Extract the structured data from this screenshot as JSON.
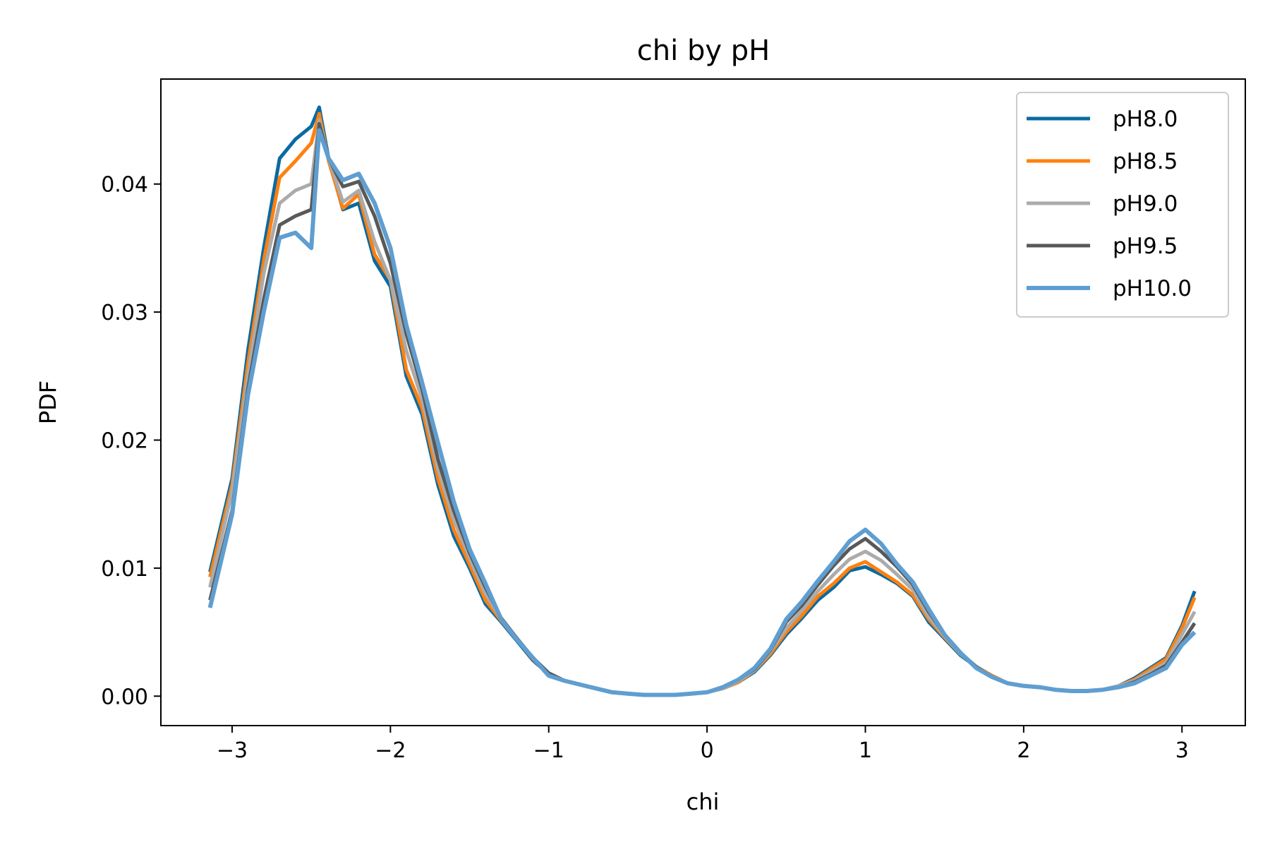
{
  "chart_data": {
    "type": "line",
    "title": "chi by pH",
    "xlabel": "chi",
    "ylabel": "PDF",
    "xlim": [
      -3.45,
      3.4
    ],
    "ylim": [
      -0.0023,
      0.0482
    ],
    "xticks": [
      -3,
      -2,
      -1,
      0,
      1,
      2,
      3
    ],
    "xtick_labels": [
      "−3",
      "−2",
      "−1",
      "0",
      "1",
      "2",
      "3"
    ],
    "yticks": [
      0.0,
      0.01,
      0.02,
      0.03,
      0.04
    ],
    "ytick_labels": [
      "0.00",
      "0.01",
      "0.02",
      "0.03",
      "0.04"
    ],
    "grid": false,
    "legend_position": "top-right",
    "x": [
      -3.14,
      -3.0,
      -2.9,
      -2.8,
      -2.7,
      -2.6,
      -2.5,
      -2.45,
      -2.39,
      -2.3,
      -2.2,
      -2.1,
      -2.0,
      -1.9,
      -1.8,
      -1.7,
      -1.6,
      -1.5,
      -1.4,
      -1.3,
      -1.2,
      -1.1,
      -1.0,
      -0.9,
      -0.8,
      -0.7,
      -0.6,
      -0.5,
      -0.4,
      -0.3,
      -0.2,
      -0.1,
      0.0,
      0.1,
      0.2,
      0.3,
      0.4,
      0.5,
      0.6,
      0.7,
      0.8,
      0.9,
      1.0,
      1.1,
      1.2,
      1.3,
      1.4,
      1.5,
      1.6,
      1.7,
      1.8,
      1.9,
      2.0,
      2.1,
      2.2,
      2.3,
      2.4,
      2.5,
      2.6,
      2.7,
      2.8,
      2.9,
      3.0,
      3.08
    ],
    "series": [
      {
        "name": "pH8.0",
        "color": "#0a6aa1",
        "values": [
          0.0097,
          0.017,
          0.027,
          0.035,
          0.042,
          0.0435,
          0.0445,
          0.046,
          0.042,
          0.038,
          0.0385,
          0.034,
          0.032,
          0.025,
          0.022,
          0.0165,
          0.0125,
          0.01,
          0.0072,
          0.0058,
          0.0043,
          0.0028,
          0.0017,
          0.0012,
          0.0009,
          0.0006,
          0.0003,
          0.0002,
          0.0001,
          0.0001,
          0.0001,
          0.0002,
          0.0003,
          0.0006,
          0.0011,
          0.0019,
          0.0032,
          0.0048,
          0.0061,
          0.0075,
          0.0085,
          0.0098,
          0.0101,
          0.0095,
          0.0088,
          0.0078,
          0.0058,
          0.0045,
          0.0032,
          0.0023,
          0.0016,
          0.001,
          0.0008,
          0.0007,
          0.0005,
          0.0004,
          0.0004,
          0.0005,
          0.0008,
          0.0014,
          0.0022,
          0.003,
          0.0055,
          0.0082
        ]
      },
      {
        "name": "pH8.5",
        "color": "#ff800e",
        "values": [
          0.0093,
          0.0165,
          0.026,
          0.034,
          0.0405,
          0.0418,
          0.0432,
          0.0455,
          0.0418,
          0.0381,
          0.0392,
          0.0345,
          0.0325,
          0.0255,
          0.0225,
          0.017,
          0.013,
          0.0103,
          0.0075,
          0.0059,
          0.0044,
          0.0029,
          0.0017,
          0.0012,
          0.0009,
          0.0006,
          0.0003,
          0.0002,
          0.0001,
          0.0001,
          0.0001,
          0.0002,
          0.0003,
          0.0006,
          0.0011,
          0.002,
          0.0033,
          0.005,
          0.0063,
          0.0078,
          0.0088,
          0.01,
          0.0105,
          0.0097,
          0.0089,
          0.0079,
          0.006,
          0.0046,
          0.0033,
          0.0023,
          0.0016,
          0.001,
          0.0008,
          0.0007,
          0.0005,
          0.0004,
          0.0004,
          0.0005,
          0.0008,
          0.0013,
          0.0021,
          0.0029,
          0.0053,
          0.0077
        ]
      },
      {
        "name": "pH9.0",
        "color": "#ababab",
        "values": [
          0.0085,
          0.016,
          0.025,
          0.033,
          0.0385,
          0.0395,
          0.04,
          0.045,
          0.042,
          0.0386,
          0.0395,
          0.0355,
          0.0325,
          0.027,
          0.0232,
          0.0178,
          0.0138,
          0.0108,
          0.008,
          0.006,
          0.0045,
          0.003,
          0.0018,
          0.0012,
          0.0009,
          0.0006,
          0.0003,
          0.0002,
          0.0001,
          0.0001,
          0.0001,
          0.0002,
          0.0003,
          0.0006,
          0.0012,
          0.002,
          0.0035,
          0.0053,
          0.0067,
          0.0082,
          0.0095,
          0.0107,
          0.0113,
          0.0106,
          0.0095,
          0.0083,
          0.0062,
          0.0047,
          0.0033,
          0.0023,
          0.0015,
          0.001,
          0.0008,
          0.0007,
          0.0005,
          0.0004,
          0.0004,
          0.0005,
          0.0008,
          0.0012,
          0.0019,
          0.0026,
          0.0048,
          0.0066
        ]
      },
      {
        "name": "pH9.5",
        "color": "#595959",
        "values": [
          0.0075,
          0.0145,
          0.024,
          0.031,
          0.0368,
          0.0375,
          0.038,
          0.0447,
          0.042,
          0.0398,
          0.0402,
          0.0375,
          0.0338,
          0.0283,
          0.024,
          0.0185,
          0.0145,
          0.0112,
          0.0085,
          0.0061,
          0.0045,
          0.003,
          0.0018,
          0.0012,
          0.0009,
          0.0006,
          0.0003,
          0.0002,
          0.0001,
          0.0001,
          0.0001,
          0.0002,
          0.0003,
          0.0007,
          0.0013,
          0.0021,
          0.0036,
          0.0058,
          0.0071,
          0.0087,
          0.0102,
          0.0115,
          0.0123,
          0.0113,
          0.0101,
          0.0087,
          0.0066,
          0.0048,
          0.0034,
          0.0023,
          0.0015,
          0.001,
          0.0008,
          0.0007,
          0.0005,
          0.0004,
          0.0004,
          0.0005,
          0.0007,
          0.0011,
          0.0017,
          0.0024,
          0.0042,
          0.0057
        ]
      },
      {
        "name": "pH10.0",
        "color": "#5f9ed1",
        "values": [
          0.0069,
          0.0142,
          0.0235,
          0.03,
          0.0358,
          0.0362,
          0.035,
          0.0442,
          0.042,
          0.0403,
          0.0408,
          0.0385,
          0.035,
          0.029,
          0.0245,
          0.0198,
          0.0152,
          0.0115,
          0.0088,
          0.006,
          0.0044,
          0.003,
          0.0016,
          0.0012,
          0.0009,
          0.0006,
          0.0003,
          0.0002,
          0.0001,
          0.0001,
          0.0001,
          0.0002,
          0.0003,
          0.0007,
          0.0013,
          0.0022,
          0.0037,
          0.006,
          0.0074,
          0.009,
          0.0105,
          0.0121,
          0.013,
          0.0119,
          0.0103,
          0.0089,
          0.0068,
          0.0048,
          0.0034,
          0.0022,
          0.0015,
          0.001,
          0.0008,
          0.0007,
          0.0005,
          0.0004,
          0.0004,
          0.0005,
          0.0007,
          0.001,
          0.0016,
          0.0022,
          0.004,
          0.005
        ]
      }
    ]
  }
}
